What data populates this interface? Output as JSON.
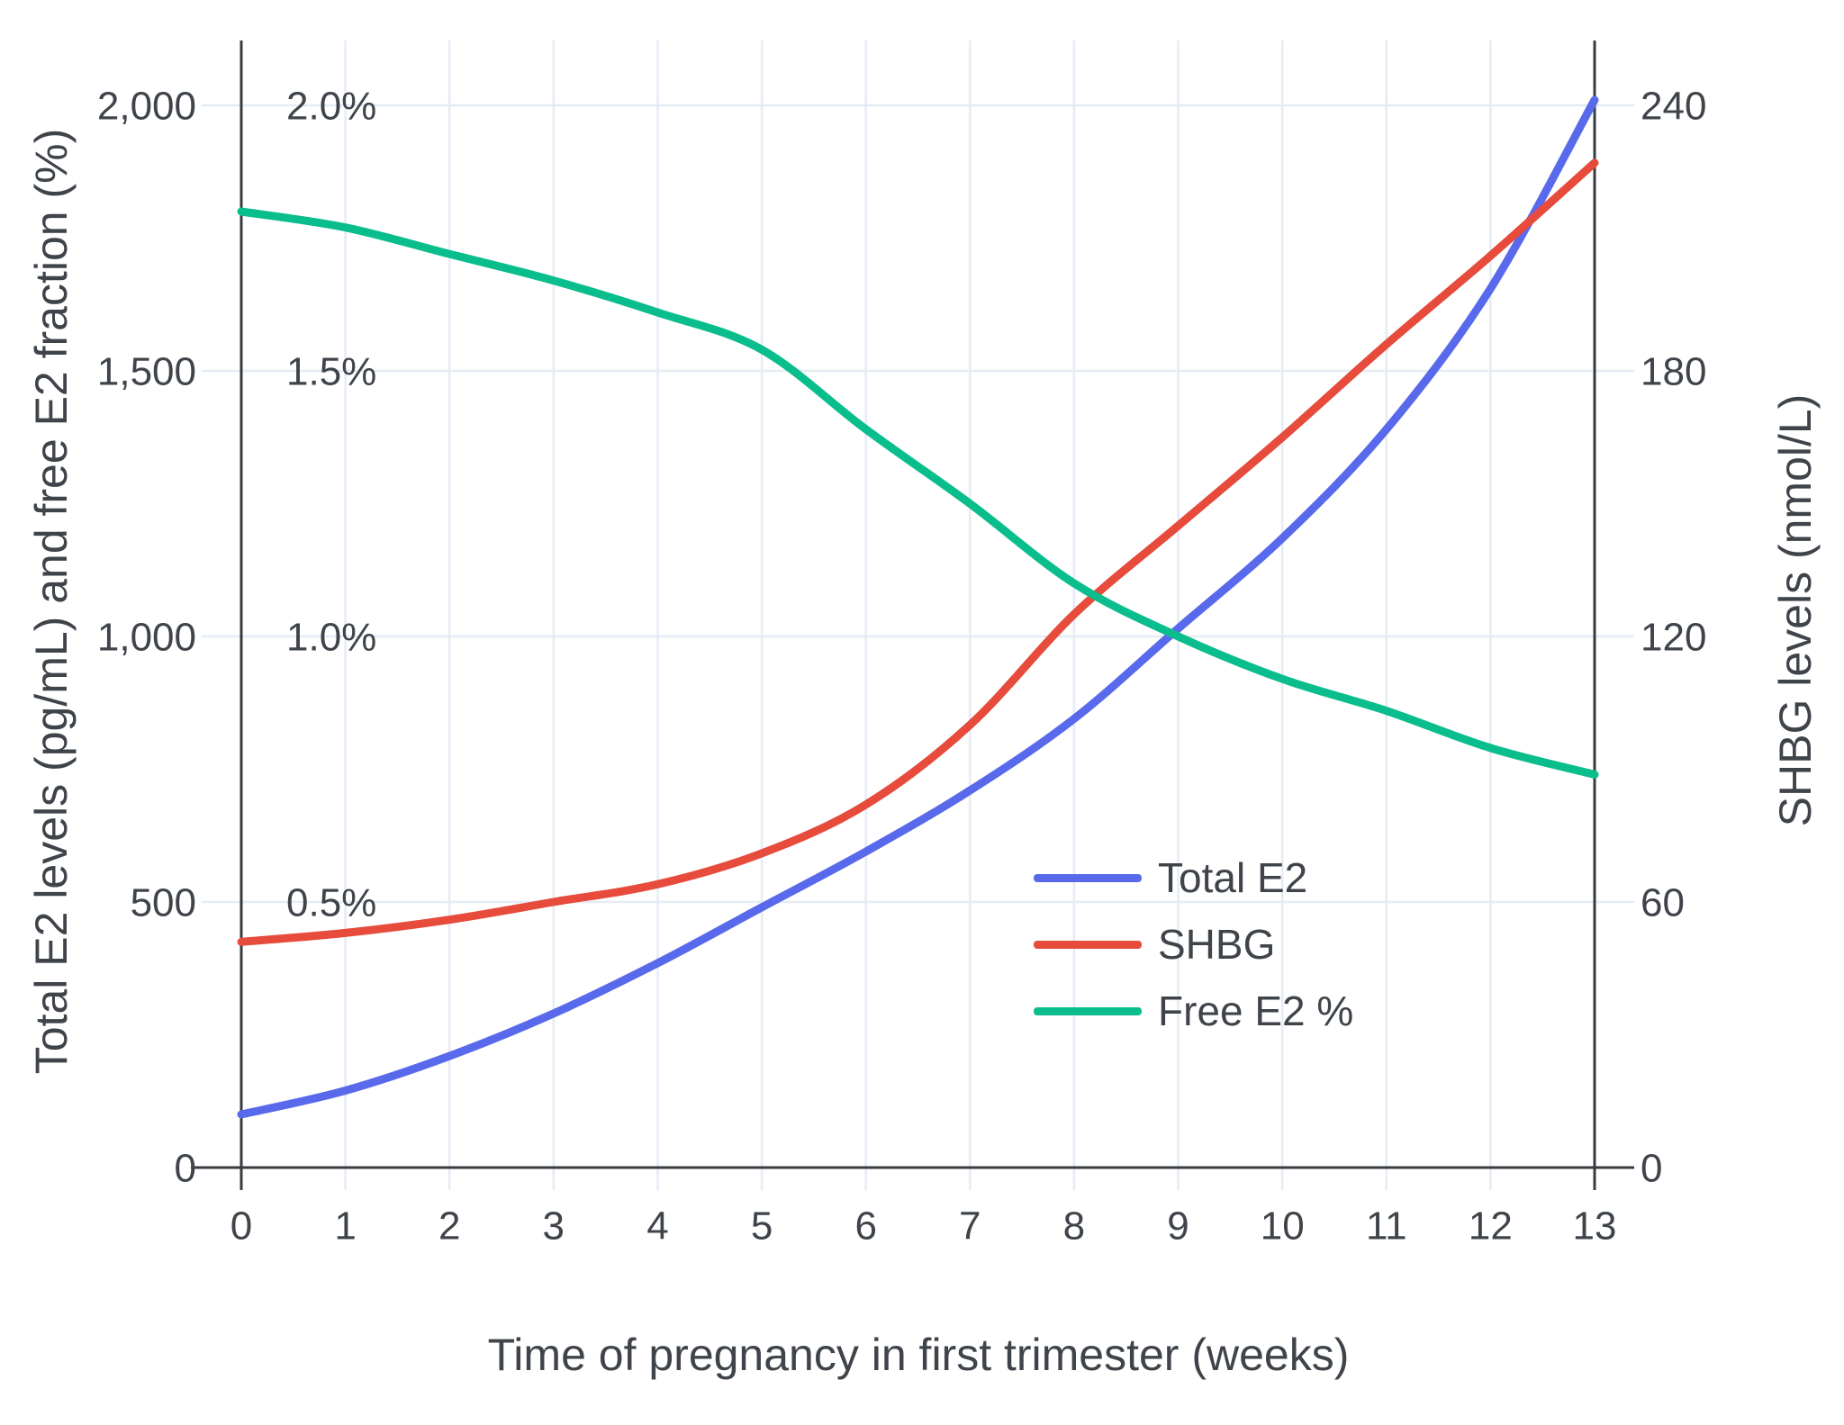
{
  "chart": {
    "x_axis_title": "Time of pregnancy in first trimester (weeks)",
    "y_axis_left_title": "Total E2 levels (pg/mL) and free E2 fraction (%)",
    "y_axis_right_title": "SHBG levels (nmol/L)"
  },
  "chart_data": {
    "type": "line",
    "title": "",
    "xlabel": "Time of pregnancy in first trimester (weeks)",
    "ylabel_left": "Total E2 levels (pg/mL) and free E2 fraction (%)",
    "ylabel_right": "SHBG levels (nmol/L)",
    "x": [
      0,
      1,
      2,
      3,
      4,
      5,
      6,
      7,
      8,
      9,
      10,
      11,
      12,
      13
    ],
    "x_tick_labels": [
      "0",
      "1",
      "2",
      "3",
      "4",
      "5",
      "6",
      "7",
      "8",
      "9",
      "10",
      "11",
      "12",
      "13"
    ],
    "axes": {
      "left": {
        "tick_values": [
          0,
          500,
          1000,
          1500,
          2000
        ],
        "tick_labels": [
          "0",
          "500",
          "1,000",
          "1,500",
          "2,000"
        ],
        "range": [
          0,
          2120
        ]
      },
      "left_percent": {
        "tick_values": [
          0.5,
          1.0,
          1.5,
          2.0
        ],
        "tick_labels": [
          "0.5%",
          "1.0%",
          "1.5%",
          "2.0%"
        ],
        "left_units_per_percent": 1000
      },
      "right": {
        "tick_values": [
          0,
          60,
          120,
          180,
          240
        ],
        "tick_labels": [
          "0",
          "60",
          "120",
          "180",
          "240"
        ],
        "range": [
          0,
          254
        ],
        "left_units_per_unit": 8.3333
      }
    },
    "grid": true,
    "legend_position": "inside-right-lower",
    "legend": [
      "Total E2",
      "SHBG",
      "Free E2 %"
    ],
    "series": [
      {
        "name": "Total E2",
        "slug": "total-e2",
        "axis": "left",
        "unit": "pg/mL",
        "color": "#586AEB",
        "values": [
          100,
          145,
          210,
          290,
          385,
          490,
          595,
          710,
          845,
          1015,
          1185,
          1390,
          1655,
          2010
        ]
      },
      {
        "name": "SHBG",
        "slug": "shbg",
        "axis": "right",
        "unit": "nmol/L",
        "color": "#E64B3C",
        "values": [
          51,
          53,
          56,
          60,
          64,
          71,
          82,
          100,
          125,
          145,
          165,
          186,
          206,
          227
        ]
      },
      {
        "name": "Free E2 %",
        "slug": "free-e2-pct",
        "axis": "left_percent",
        "unit": "%",
        "color": "#0ABD8C",
        "values": [
          1.8,
          1.77,
          1.72,
          1.67,
          1.61,
          1.54,
          1.39,
          1.25,
          1.1,
          1.0,
          0.92,
          0.86,
          0.79,
          0.74
        ]
      }
    ],
    "colors": {
      "grid": "#E6ECF6",
      "axis_line": "#383B40",
      "text": "#3F444B"
    }
  }
}
